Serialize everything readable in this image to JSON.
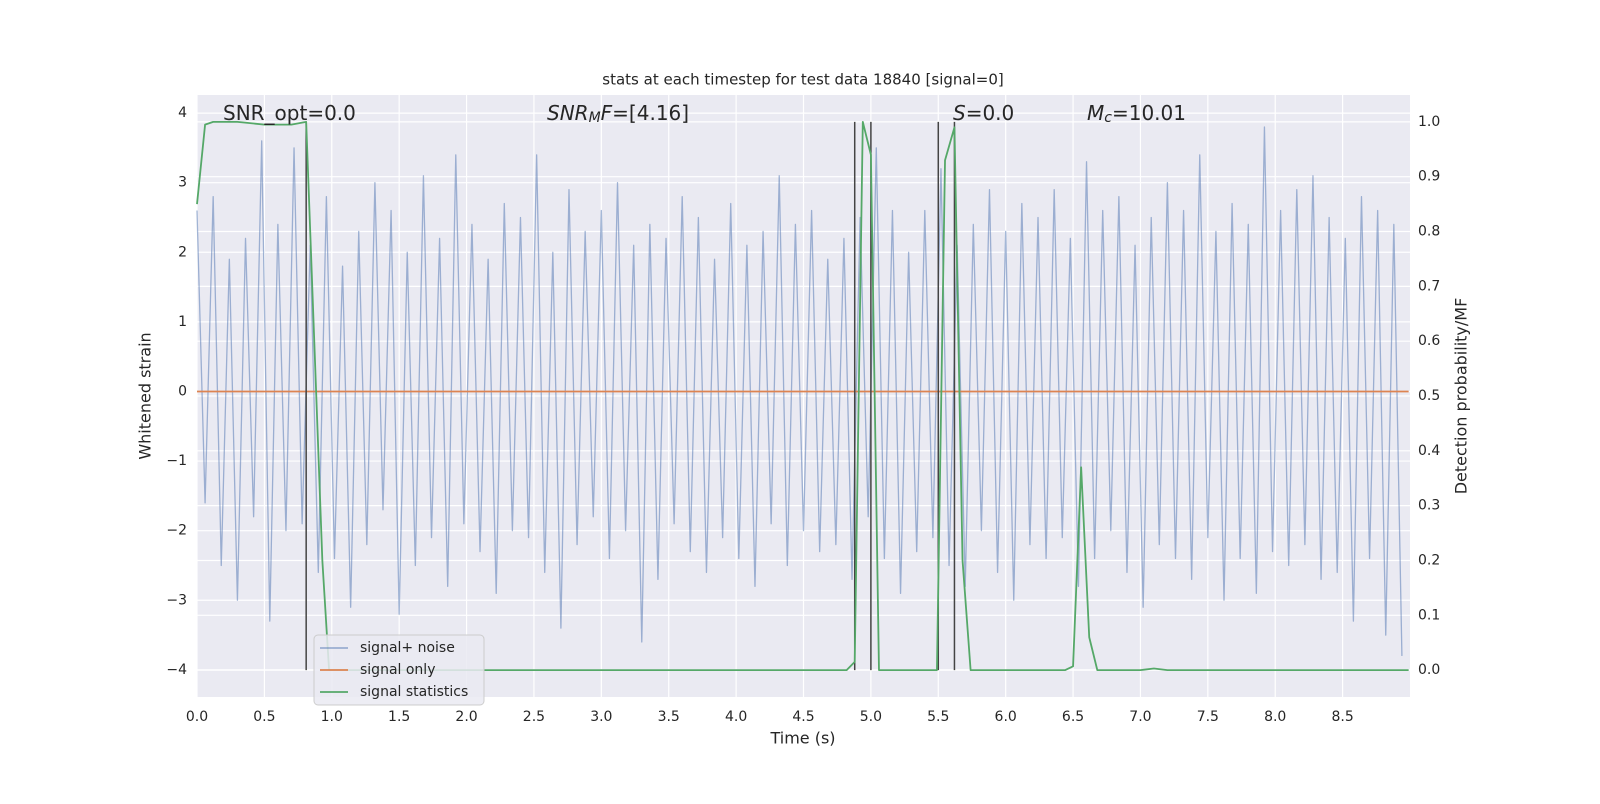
{
  "chart_data": {
    "type": "line",
    "title": "stats at each timestep for test data 18840 [signal=0]",
    "x_label": "Time (s)",
    "y_label": "Whitened strain",
    "y2_label": "Detection probability/MF",
    "xlim": [
      0,
      9.0
    ],
    "ylim": [
      -4.39,
      4.26
    ],
    "y2lim": [
      -0.049,
      1.049
    ],
    "xticks": [
      {
        "value": 0,
        "label": "0.0"
      },
      {
        "value": 0.5,
        "label": "0.5"
      },
      {
        "value": 1,
        "label": "1.0"
      },
      {
        "value": 1.5,
        "label": "1.5"
      },
      {
        "value": 2,
        "label": "2.0"
      },
      {
        "value": 2.5,
        "label": "2.5"
      },
      {
        "value": 3,
        "label": "3.0"
      },
      {
        "value": 3.5,
        "label": "3.5"
      },
      {
        "value": 4,
        "label": "4.0"
      },
      {
        "value": 4.5,
        "label": "4.5"
      },
      {
        "value": 5,
        "label": "5.0"
      },
      {
        "value": 5.5,
        "label": "5.5"
      },
      {
        "value": 6,
        "label": "6.0"
      },
      {
        "value": 6.5,
        "label": "6.5"
      },
      {
        "value": 7,
        "label": "7.0"
      },
      {
        "value": 7.5,
        "label": "7.5"
      },
      {
        "value": 8,
        "label": "8.0"
      },
      {
        "value": 8.5,
        "label": "8.5"
      }
    ],
    "yticks": [
      {
        "value": -4,
        "label": "−4"
      },
      {
        "value": -3,
        "label": "−3"
      },
      {
        "value": -2,
        "label": "−2"
      },
      {
        "value": -1,
        "label": "−1"
      },
      0,
      1,
      2,
      3,
      4
    ],
    "y2ticks": [
      {
        "value": 0,
        "label": "0.0"
      },
      0.1,
      0.2,
      0.3,
      0.4,
      0.5,
      0.6,
      0.7,
      0.8,
      0.9,
      {
        "value": 1,
        "label": "1.0"
      }
    ],
    "grid": true,
    "background": "#eaeaf2",
    "legend": "lower left",
    "series": [
      {
        "name": "signal+ noise",
        "color": "#4c72b0",
        "opacity": 0.5,
        "x": [
          0,
          0.06,
          0.12,
          0.18,
          0.24,
          0.3,
          0.36,
          0.42,
          0.48,
          0.54,
          0.6,
          0.66,
          0.72,
          0.78,
          0.84,
          0.9,
          0.96,
          1.02,
          1.08,
          1.14,
          1.2,
          1.26,
          1.32,
          1.38,
          1.44,
          1.5,
          1.56,
          1.62,
          1.68,
          1.74,
          1.8,
          1.86,
          1.92,
          1.98,
          2.04,
          2.1,
          2.16,
          2.22,
          2.28,
          2.34,
          2.4,
          2.46,
          2.52,
          2.58,
          2.64,
          2.7,
          2.76,
          2.82,
          2.88,
          2.94,
          3.0,
          3.06,
          3.12,
          3.18,
          3.24,
          3.3,
          3.36,
          3.42,
          3.48,
          3.54,
          3.6,
          3.66,
          3.72,
          3.78,
          3.84,
          3.9,
          3.96,
          4.02,
          4.08,
          4.14,
          4.2,
          4.26,
          4.32,
          4.38,
          4.44,
          4.5,
          4.56,
          4.62,
          4.68,
          4.74,
          4.8,
          4.86,
          4.92,
          4.98,
          5.04,
          5.1,
          5.16,
          5.22,
          5.28,
          5.34,
          5.4,
          5.46,
          5.52,
          5.58,
          5.64,
          5.7,
          5.76,
          5.82,
          5.88,
          5.94,
          6.0,
          6.06,
          6.12,
          6.18,
          6.24,
          6.3,
          6.36,
          6.42,
          6.48,
          6.54,
          6.6,
          6.66,
          6.72,
          6.78,
          6.84,
          6.9,
          6.96,
          7.02,
          7.08,
          7.14,
          7.2,
          7.26,
          7.32,
          7.38,
          7.44,
          7.5,
          7.56,
          7.62,
          7.68,
          7.74,
          7.8,
          7.86,
          7.92,
          7.98,
          8.04,
          8.1,
          8.16,
          8.22,
          8.28,
          8.34,
          8.4,
          8.46,
          8.52,
          8.58,
          8.64,
          8.7,
          8.76,
          8.82,
          8.88,
          8.94
        ],
        "values": [
          2.6,
          -1.6,
          2.8,
          -2.5,
          1.9,
          -3.0,
          2.2,
          -1.8,
          3.6,
          -3.3,
          2.4,
          -2.0,
          3.5,
          -1.9,
          2.1,
          -2.6,
          2.8,
          -2.4,
          1.8,
          -3.1,
          2.3,
          -2.2,
          3.0,
          -1.7,
          2.6,
          -3.2,
          2.0,
          -2.5,
          3.1,
          -2.1,
          2.2,
          -2.8,
          3.4,
          -1.9,
          2.4,
          -2.3,
          1.9,
          -2.9,
          2.7,
          -2.0,
          2.5,
          -2.1,
          3.4,
          -2.6,
          2.0,
          -3.4,
          2.9,
          -2.2,
          2.3,
          -1.8,
          2.6,
          -2.4,
          3.0,
          -2.0,
          2.1,
          -3.6,
          2.4,
          -2.7,
          2.2,
          -1.9,
          2.8,
          -2.3,
          2.5,
          -2.6,
          1.9,
          -2.1,
          2.7,
          -2.4,
          2.1,
          -2.8,
          2.3,
          -1.9,
          3.1,
          -2.5,
          2.4,
          -2.0,
          2.6,
          -2.3,
          1.9,
          -2.2,
          2.2,
          -2.7,
          2.5,
          -1.8,
          3.5,
          -2.4,
          2.6,
          -2.9,
          2.0,
          -2.3,
          2.6,
          -2.1,
          3.2,
          -2.5,
          2.1,
          -2.8,
          2.4,
          -2.0,
          2.9,
          -2.6,
          2.3,
          -3.0,
          2.7,
          -2.2,
          2.5,
          -2.4,
          2.9,
          -2.1,
          2.2,
          -2.8,
          3.3,
          -2.4,
          2.6,
          -2.0,
          2.8,
          -2.6,
          2.1,
          -3.1,
          2.5,
          -2.2,
          3.0,
          -2.4,
          2.6,
          -2.7,
          3.4,
          -2.1,
          2.3,
          -3.0,
          2.7,
          -2.4,
          2.4,
          -2.9,
          3.8,
          -2.3,
          2.6,
          -2.5,
          2.9,
          -2.2,
          3.1,
          -2.7,
          2.5,
          -2.6,
          2.2,
          -3.3,
          2.8,
          -2.4,
          2.6,
          -3.5,
          2.4,
          -3.8
        ]
      },
      {
        "name": "signal only",
        "color": "#dd8452",
        "opacity": 1,
        "x": [
          0,
          8.99
        ],
        "values": [
          0,
          0
        ]
      },
      {
        "name": "signal statistics",
        "color": "#55a868",
        "opacity": 1,
        "axis": "y2",
        "x": [
          0,
          0.06,
          0.12,
          0.3,
          0.5,
          0.7,
          0.81,
          0.87,
          0.93,
          0.98,
          4.82,
          4.88,
          4.94,
          5.0,
          5.06,
          5.49,
          5.55,
          5.62,
          5.68,
          5.74,
          6.44,
          6.5,
          6.56,
          6.62,
          6.68,
          7.0,
          7.1,
          7.2,
          8.99
        ],
        "values": [
          0.85,
          0.995,
          1.0,
          1.0,
          0.995,
          0.995,
          1.0,
          0.6,
          0.2,
          0.0,
          0.0,
          0.015,
          1.0,
          0.94,
          0.0,
          0.0,
          0.93,
          0.99,
          0.2,
          0.0,
          0.0,
          0.007,
          0.37,
          0.06,
          0.0,
          0.0,
          0.003,
          0.0,
          0.0
        ]
      }
    ],
    "vlines": {
      "color": "#444444",
      "x": [
        0.81,
        4.88,
        5.0,
        5.5,
        5.62
      ],
      "y2min": 0,
      "y2max": 1
    },
    "annotations": [
      {
        "parts": [
          {
            "text": "SNR_opt=0.0"
          }
        ]
      },
      {
        "parts": [
          {
            "text": "SNR",
            "italic": true
          },
          {
            "text": "M",
            "italic": true,
            "sub": true
          },
          {
            "text": "F",
            "italic": true
          },
          {
            "text": "=[4.16]"
          }
        ]
      },
      {
        "parts": [
          {
            "text": "S",
            "italic": true
          },
          {
            "text": "=0.0"
          }
        ]
      },
      {
        "parts": [
          {
            "text": "M",
            "italic": true
          },
          {
            "text": "c",
            "italic": true,
            "sub": true
          },
          {
            "text": "=10.01"
          }
        ]
      }
    ]
  }
}
